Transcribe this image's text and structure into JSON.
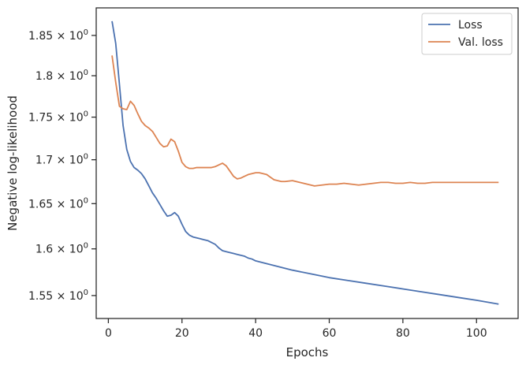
{
  "chart_data": {
    "type": "line",
    "xlabel": "Epochs",
    "ylabel": "Negative log-likelihood",
    "yscale": "log",
    "xlim": [
      -3.3,
      111.3
    ],
    "ylim": [
      1.526,
      1.885
    ],
    "xticks": [
      0,
      20,
      40,
      60,
      80,
      100
    ],
    "xtick_labels": [
      "0",
      "20",
      "40",
      "60",
      "80",
      "100"
    ],
    "yticks": [
      1.55,
      1.6,
      1.65,
      1.7,
      1.75,
      1.8,
      1.85
    ],
    "ytick_labels": [
      "1.55",
      "1.6",
      "1.65",
      "1.7",
      "1.75",
      "1.8",
      "1.85"
    ],
    "ytick_suffix_base": "10",
    "ytick_suffix_exp": "0",
    "grid": false,
    "legend_position": "top-right",
    "series": [
      {
        "name": "Loss",
        "color": "#4c72b0",
        "x": [
          1,
          2,
          3,
          4,
          5,
          6,
          7,
          8,
          9,
          10,
          11,
          12,
          13,
          14,
          15,
          16,
          17,
          18,
          19,
          20,
          21,
          22,
          23,
          24,
          25,
          26,
          27,
          28,
          29,
          30,
          31,
          32,
          33,
          34,
          35,
          36,
          37,
          38,
          39,
          40,
          42,
          44,
          46,
          48,
          50,
          55,
          60,
          65,
          70,
          75,
          80,
          85,
          90,
          95,
          100,
          106
        ],
        "values": [
          1.868,
          1.84,
          1.79,
          1.74,
          1.712,
          1.698,
          1.691,
          1.688,
          1.684,
          1.678,
          1.67,
          1.662,
          1.656,
          1.649,
          1.642,
          1.636,
          1.637,
          1.64,
          1.636,
          1.627,
          1.619,
          1.615,
          1.613,
          1.612,
          1.611,
          1.61,
          1.609,
          1.607,
          1.605,
          1.601,
          1.598,
          1.597,
          1.596,
          1.595,
          1.594,
          1.593,
          1.592,
          1.59,
          1.589,
          1.587,
          1.585,
          1.583,
          1.581,
          1.579,
          1.577,
          1.573,
          1.569,
          1.566,
          1.563,
          1.56,
          1.557,
          1.554,
          1.551,
          1.548,
          1.545,
          1.541
        ]
      },
      {
        "name": "Val. loss",
        "color": "#dd8452",
        "x": [
          1,
          2,
          3,
          4,
          5,
          6,
          7,
          8,
          9,
          10,
          11,
          12,
          13,
          14,
          15,
          16,
          17,
          18,
          19,
          20,
          21,
          22,
          23,
          24,
          25,
          26,
          27,
          28,
          29,
          30,
          31,
          32,
          33,
          34,
          35,
          36,
          37,
          38,
          39,
          40,
          41,
          42,
          43,
          44,
          45,
          46,
          47,
          48,
          50,
          52,
          54,
          56,
          58,
          60,
          62,
          64,
          66,
          68,
          70,
          72,
          74,
          76,
          78,
          80,
          82,
          84,
          86,
          88,
          90,
          92,
          94,
          96,
          98,
          100,
          102,
          104,
          106
        ],
        "values": [
          1.825,
          1.792,
          1.763,
          1.76,
          1.759,
          1.769,
          1.764,
          1.754,
          1.745,
          1.74,
          1.737,
          1.733,
          1.726,
          1.719,
          1.715,
          1.716,
          1.724,
          1.721,
          1.71,
          1.697,
          1.692,
          1.69,
          1.69,
          1.691,
          1.691,
          1.691,
          1.691,
          1.691,
          1.692,
          1.694,
          1.696,
          1.693,
          1.687,
          1.681,
          1.678,
          1.679,
          1.681,
          1.683,
          1.684,
          1.685,
          1.685,
          1.684,
          1.683,
          1.68,
          1.677,
          1.676,
          1.675,
          1.675,
          1.676,
          1.674,
          1.672,
          1.67,
          1.671,
          1.672,
          1.672,
          1.673,
          1.672,
          1.671,
          1.672,
          1.673,
          1.674,
          1.674,
          1.673,
          1.673,
          1.674,
          1.673,
          1.673,
          1.674,
          1.674,
          1.674,
          1.674,
          1.674,
          1.674,
          1.674,
          1.674,
          1.674,
          1.674
        ]
      }
    ]
  }
}
